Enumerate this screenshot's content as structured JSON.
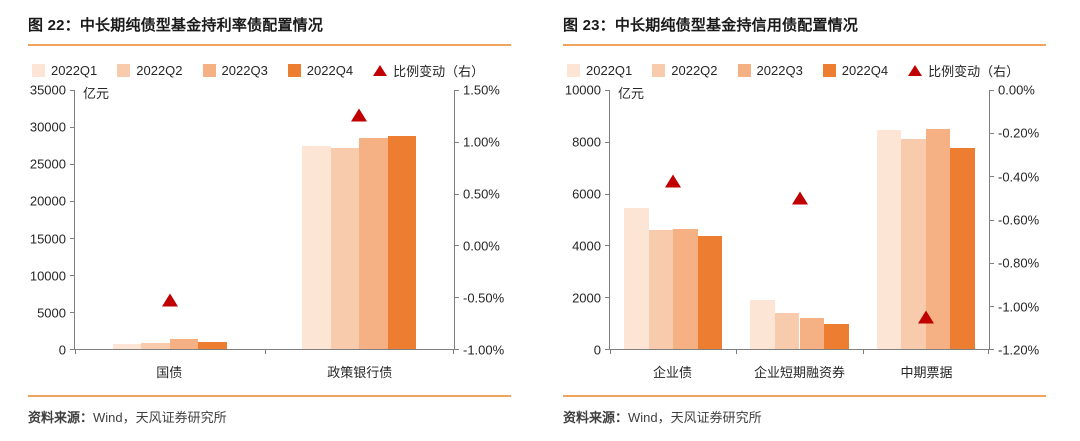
{
  "page": {
    "background": "#ffffff",
    "accent_line_color": "#f0a35a",
    "triangle_color": "#c00000",
    "axis_color": "#7f7f7f"
  },
  "chart_data": [
    {
      "type": "bar",
      "title": "图 22：中长期纯债型基金持利率债配置情况",
      "unit_label": "亿元",
      "source_prefix": "资料来源：",
      "source_text": "Wind，天风证券研究所",
      "legend": [
        {
          "label": "2022Q1",
          "color": "#fce5d4",
          "marker": "square"
        },
        {
          "label": "2022Q2",
          "color": "#f8cbad",
          "marker": "square"
        },
        {
          "label": "2022Q3",
          "color": "#f5b183",
          "marker": "square"
        },
        {
          "label": "2022Q4",
          "color": "#ed7d31",
          "marker": "square"
        },
        {
          "label": "比例变动（右）",
          "color": "#c00000",
          "marker": "triangle"
        }
      ],
      "categories": [
        "国债",
        "政策银行债"
      ],
      "series": [
        {
          "name": "2022Q1",
          "color": "#fce5d4",
          "values": [
            700,
            27500
          ]
        },
        {
          "name": "2022Q2",
          "color": "#f8cbad",
          "values": [
            800,
            27100
          ]
        },
        {
          "name": "2022Q3",
          "color": "#f5b183",
          "values": [
            1300,
            28500
          ]
        },
        {
          "name": "2022Q4",
          "color": "#ed7d31",
          "values": [
            1000,
            28800
          ]
        }
      ],
      "triangle_series": {
        "name": "比例变动（右）",
        "axis": "right",
        "values": [
          -0.53,
          1.26
        ]
      },
      "left_axis": {
        "min": 0,
        "max": 35000,
        "tick_values": [
          35000,
          30000,
          25000,
          20000,
          15000,
          10000,
          5000,
          0
        ],
        "tick_labels": [
          "35000",
          "30000",
          "25000",
          "20000",
          "15000",
          "10000",
          "5000",
          "0"
        ]
      },
      "right_axis": {
        "min": -1.0,
        "max": 1.5,
        "tick_values": [
          1.5,
          1.0,
          0.5,
          0.0,
          -0.5,
          -1.0
        ],
        "tick_labels": [
          "1.50%",
          "1.00%",
          "0.50%",
          "0.00%",
          "-0.50%",
          "-1.00%"
        ]
      },
      "layout": {
        "cluster_ratio": 0.6,
        "grid": false,
        "legend_position": "top"
      }
    },
    {
      "type": "bar",
      "title": "图 23：中长期纯债型基金持信用债配置情况",
      "unit_label": "亿元",
      "source_prefix": "资料来源：",
      "source_text": "Wind，天风证券研究所",
      "legend": [
        {
          "label": "2022Q1",
          "color": "#fce5d4",
          "marker": "square"
        },
        {
          "label": "2022Q2",
          "color": "#f8cbad",
          "marker": "square"
        },
        {
          "label": "2022Q3",
          "color": "#f5b183",
          "marker": "square"
        },
        {
          "label": "2022Q4",
          "color": "#ed7d31",
          "marker": "square"
        },
        {
          "label": "比例变动（右）",
          "color": "#c00000",
          "marker": "triangle"
        }
      ],
      "categories": [
        "企业债",
        "企业短期融资券",
        "中期票据"
      ],
      "series": [
        {
          "name": "2022Q1",
          "color": "#fce5d4",
          "values": [
            5450,
            1900,
            8450
          ]
        },
        {
          "name": "2022Q2",
          "color": "#f8cbad",
          "values": [
            4600,
            1400,
            8100
          ]
        },
        {
          "name": "2022Q3",
          "color": "#f5b183",
          "values": [
            4650,
            1200,
            8500
          ]
        },
        {
          "name": "2022Q4",
          "color": "#ed7d31",
          "values": [
            4350,
            950,
            7750
          ]
        }
      ],
      "triangle_series": {
        "name": "比例变动（右）",
        "axis": "right",
        "values": [
          -0.42,
          -0.5,
          -1.05
        ]
      },
      "left_axis": {
        "min": 0,
        "max": 10000,
        "tick_values": [
          10000,
          8000,
          6000,
          4000,
          2000,
          0
        ],
        "tick_labels": [
          "10000",
          "8000",
          "6000",
          "4000",
          "2000",
          "0"
        ]
      },
      "right_axis": {
        "min": -1.2,
        "max": 0.0,
        "tick_values": [
          0.0,
          -0.2,
          -0.4,
          -0.6,
          -0.8,
          -1.0,
          -1.2
        ],
        "tick_labels": [
          "0.00%",
          "-0.20%",
          "-0.40%",
          "-0.60%",
          "-0.80%",
          "-1.00%",
          "-1.20%"
        ]
      },
      "layout": {
        "cluster_ratio": 0.78,
        "grid": false,
        "legend_position": "top"
      }
    }
  ]
}
